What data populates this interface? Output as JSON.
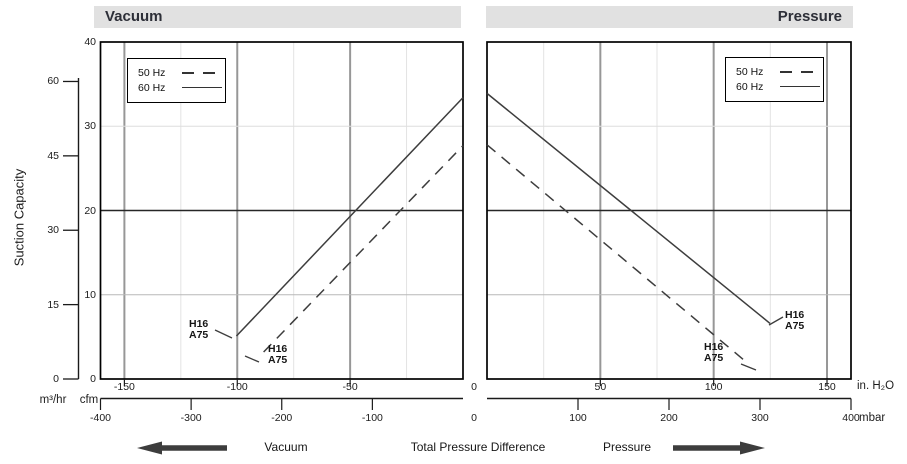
{
  "titles": {
    "vacuum": "Vacuum",
    "pressure": "Pressure"
  },
  "y_axis": {
    "title": "Suction Capacity",
    "outer_unit": "m³/hr",
    "inner_unit": "cfm",
    "outer_ticks_m3hr": [
      0,
      15,
      30,
      45,
      60
    ],
    "inner_ticks_cfm": [
      0,
      10,
      20,
      30,
      40
    ]
  },
  "x_axis": {
    "top_unit": "in. H₂O",
    "bottom_unit": "mbar",
    "shared_zero": "0"
  },
  "legend": {
    "items": [
      {
        "label": "50 Hz",
        "style": "dashed"
      },
      {
        "label": "60 Hz",
        "style": "solid"
      }
    ]
  },
  "footer": {
    "vacuum_label": "Vacuum",
    "center_label": "Total Pressure Difference",
    "pressure_label": "Pressure"
  },
  "chart_data": [
    {
      "type": "line",
      "title": "Vacuum",
      "xlabel": "Total Pressure Difference",
      "ylabel": "Suction Capacity",
      "x_unit_primary": "mbar",
      "x_unit_secondary": "in. H₂O",
      "y_unit_primary": "cfm",
      "y_unit_secondary": "m³/hr",
      "xlim_mbar": [
        -400,
        0
      ],
      "ylim_cfm": [
        0,
        40
      ],
      "top_ticks_inh2o": [
        -150,
        -100,
        -50
      ],
      "bottom_ticks_mbar": [
        -400,
        -300,
        -200,
        -100
      ],
      "grid_major_inh2o": [
        -150,
        -100,
        -50
      ],
      "grid_minor_inh2o": [
        -125,
        -75,
        -25
      ],
      "grid_cfm": [
        10,
        20,
        30
      ],
      "series": [
        {
          "name": "50 Hz",
          "style": "dashed",
          "annotation": [
            "H16",
            "A75"
          ],
          "points_mbar_cfm": [
            [
              -220,
              3.2
            ],
            [
              0,
              27.7
            ]
          ]
        },
        {
          "name": "60 Hz",
          "style": "solid",
          "annotation": [
            "H16",
            "A75"
          ],
          "points_mbar_cfm": [
            [
              -250,
              5.1
            ],
            [
              0,
              33.4
            ]
          ]
        }
      ]
    },
    {
      "type": "line",
      "title": "Pressure",
      "xlabel": "Total Pressure Difference",
      "ylabel": "Suction Capacity",
      "x_unit_primary": "mbar",
      "x_unit_secondary": "in. H₂O",
      "y_unit_primary": "cfm",
      "y_unit_secondary": "m³/hr",
      "xlim_mbar": [
        0,
        400
      ],
      "ylim_cfm": [
        0,
        40
      ],
      "top_ticks_inh2o": [
        50,
        100,
        150
      ],
      "bottom_ticks_mbar": [
        100,
        200,
        300,
        400
      ],
      "grid_major_inh2o": [
        50,
        100,
        150
      ],
      "grid_minor_inh2o": [
        25,
        75,
        125
      ],
      "grid_cfm": [
        10,
        20,
        30
      ],
      "series": [
        {
          "name": "50 Hz",
          "style": "dashed",
          "annotation": [
            "H16",
            "A75"
          ],
          "points_mbar_cfm": [
            [
              0,
              27.8
            ],
            [
              284,
              2.1
            ]
          ]
        },
        {
          "name": "60 Hz",
          "style": "solid",
          "annotation": [
            "H16",
            "A75"
          ],
          "points_mbar_cfm": [
            [
              0,
              33.9
            ],
            [
              311,
              6.6
            ]
          ]
        }
      ]
    }
  ]
}
